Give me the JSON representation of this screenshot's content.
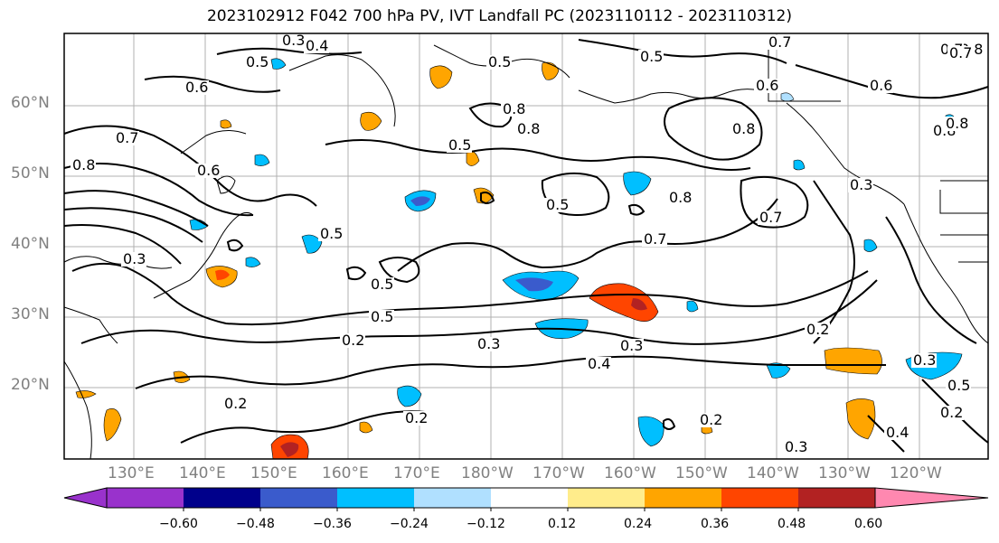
{
  "title": "2023102912 F042 700 hPa PV, IVT Landfall PC (2023110112 - 2023110312)",
  "lat_labels": [
    "60°N",
    "50°N",
    "40°N",
    "30°N",
    "20°N"
  ],
  "lon_labels": [
    "130°E",
    "140°E",
    "150°E",
    "160°E",
    "170°E",
    "180°W",
    "170°W",
    "160°W",
    "150°W",
    "140°W",
    "130°W",
    "120°W"
  ],
  "contour_labels": [
    "0.3",
    "0.4",
    "0.5",
    "0.6",
    "0.7",
    "0.8",
    "0.5",
    "0.8",
    "0.7",
    "0.6",
    "0.5",
    "0.8",
    "0.7",
    "0.6",
    "0.8",
    "0.8",
    "0.5",
    "0.5",
    "0.5",
    "0.7",
    "0.8",
    "0.7",
    "0.5",
    "0.3",
    "0.5",
    "0.3",
    "0.3",
    "0.2",
    "0.3",
    "0.2",
    "0.4",
    "0.2",
    "0.2",
    "0.3",
    "0.2",
    "0.4",
    "0.5",
    "0.2",
    "0.3",
    "0.8",
    "0.6",
    "0.8",
    "0.7"
  ],
  "colorbar": {
    "ticks": [
      "−0.60",
      "−0.48",
      "−0.36",
      "−0.24",
      "−0.12",
      "0.12",
      "0.24",
      "0.36",
      "0.48",
      "0.60"
    ],
    "colors": [
      "#9932cc",
      "#00008b",
      "#3a5bcc",
      "#00bfff",
      "#b0e0ff",
      "#ffffff",
      "#ffec8b",
      "#ffa500",
      "#ff4500",
      "#b22222",
      "#ff88b0"
    ]
  }
}
